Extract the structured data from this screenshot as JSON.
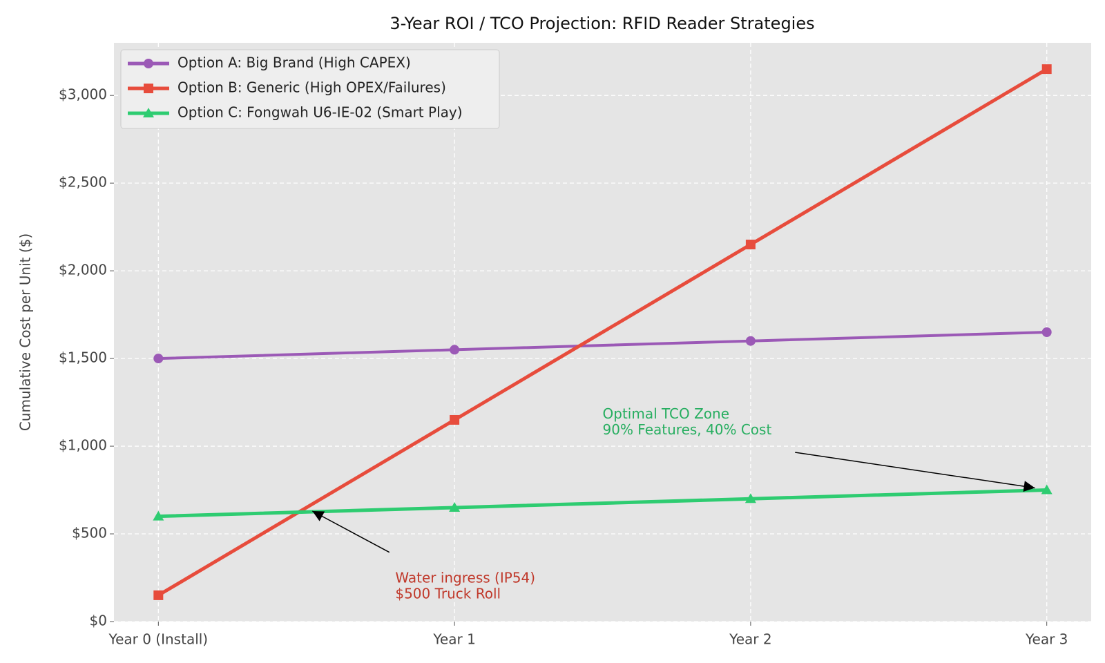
{
  "chart_data": {
    "type": "line",
    "title": "3-Year ROI / TCO Projection: RFID Reader Strategies",
    "y_label": "Cumulative Cost per Unit ($)",
    "categories": [
      "Year 0 (Install)",
      "Year 1",
      "Year 2",
      "Year 3"
    ],
    "series": [
      {
        "name": "Option A: Big Brand (High CAPEX)",
        "color": "#9b59b6",
        "marker": "circle",
        "values": [
          1500,
          1550,
          1600,
          1650
        ]
      },
      {
        "name": "Option B: Generic (High OPEX/Failures)",
        "color": "#e74c3c",
        "marker": "square",
        "values": [
          150,
          1150,
          2150,
          3150
        ]
      },
      {
        "name": "Option C: Fongwah U6-IE-02 (Smart Play)",
        "color": "#2ecc71",
        "marker": "triangle",
        "values": [
          600,
          650,
          700,
          750
        ]
      }
    ],
    "ylim": [
      0,
      3300
    ],
    "yticks": [
      {
        "value": 0,
        "label": "$0"
      },
      {
        "value": 500,
        "label": "$500"
      },
      {
        "value": 1000,
        "label": "$1,000"
      },
      {
        "value": 1500,
        "label": "$1,500"
      },
      {
        "value": 2000,
        "label": "$2,000"
      },
      {
        "value": 2500,
        "label": "$2,500"
      },
      {
        "value": 3000,
        "label": "$3,000"
      }
    ],
    "grid": true,
    "legend": "upper-left",
    "annotations": [
      {
        "lines": [
          "Water ingress (IP54)",
          "$500 Truck Roll"
        ],
        "color": "#c0392b"
      },
      {
        "lines": [
          "Optimal TCO Zone",
          "90% Features, 40% Cost"
        ],
        "color": "#27ae60"
      }
    ]
  }
}
